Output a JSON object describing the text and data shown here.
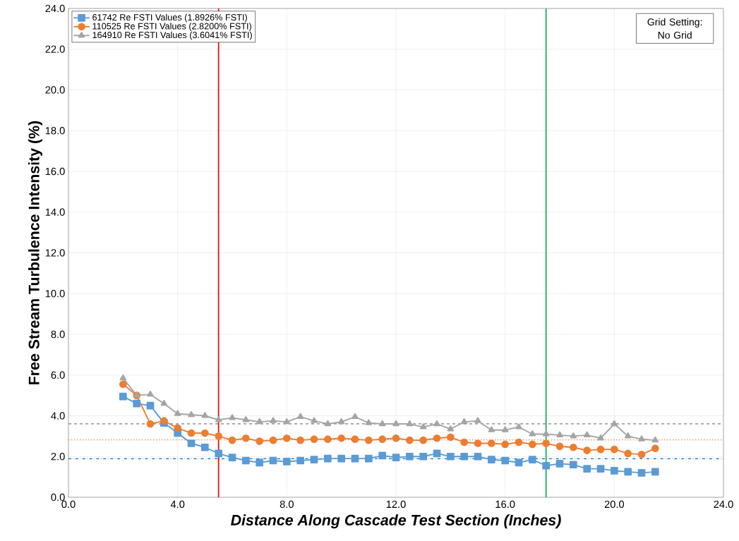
{
  "chart_data": {
    "type": "line",
    "xlabel": "Distance Along Cascade Test Section (Inches)",
    "ylabel": "Free Stream Turbulence Intensity (%)",
    "annotations": [
      "Grid Setting: No Grid"
    ],
    "x": [
      2,
      2.5,
      3,
      3.5,
      4,
      4.5,
      5,
      5.5,
      6,
      6.5,
      7,
      7.5,
      8,
      8.5,
      9,
      9.5,
      10,
      10.5,
      11,
      11.5,
      12,
      12.5,
      13,
      13.5,
      14,
      14.5,
      15,
      15.5,
      16,
      16.5,
      17,
      17.5,
      18,
      18.5,
      19,
      19.5,
      20,
      20.5,
      21,
      21.5
    ],
    "series": [
      {
        "name": "61742 Re FSTI Values (1.8926% FSTI)",
        "color": "#5b9bd5",
        "marker": "square",
        "values": [
          4.95,
          4.6,
          4.5,
          3.65,
          3.15,
          2.65,
          2.45,
          2.15,
          1.95,
          1.8,
          1.7,
          1.8,
          1.75,
          1.8,
          1.85,
          1.9,
          1.9,
          1.9,
          1.9,
          2.05,
          1.95,
          2.0,
          2.0,
          2.15,
          2.0,
          2.0,
          2.0,
          1.85,
          1.8,
          1.7,
          1.85,
          1.55,
          1.65,
          1.6,
          1.4,
          1.4,
          1.3,
          1.25,
          1.2,
          1.25
        ]
      },
      {
        "name": "110525 Re FSTI Values (2.8200% FSTI)",
        "color": "#ed7d31",
        "marker": "circle",
        "values": [
          5.55,
          5.0,
          3.6,
          3.75,
          3.4,
          3.15,
          3.15,
          3.0,
          2.8,
          2.9,
          2.75,
          2.8,
          2.9,
          2.8,
          2.85,
          2.85,
          2.9,
          2.85,
          2.8,
          2.85,
          2.9,
          2.8,
          2.8,
          2.9,
          2.95,
          2.7,
          2.65,
          2.65,
          2.6,
          2.7,
          2.6,
          2.65,
          2.5,
          2.45,
          2.3,
          2.35,
          2.35,
          2.15,
          2.1,
          2.4
        ]
      },
      {
        "name": "164910 Re FSTI Values (3.6041% FSTI)",
        "color": "#a5a5a5",
        "marker": "triangle",
        "values": [
          5.85,
          5.0,
          5.05,
          4.6,
          4.1,
          4.05,
          4.0,
          3.8,
          3.9,
          3.8,
          3.7,
          3.75,
          3.7,
          3.95,
          3.75,
          3.6,
          3.7,
          3.95,
          3.65,
          3.6,
          3.6,
          3.6,
          3.45,
          3.6,
          3.35,
          3.7,
          3.75,
          3.3,
          3.3,
          3.45,
          3.1,
          3.1,
          3.05,
          3.0,
          3.05,
          2.9,
          3.6,
          3.0,
          2.85,
          2.8
        ]
      }
    ],
    "ref_lines": [
      {
        "axis": "y",
        "value": 1.8926,
        "color": "#0070c0",
        "line_style": "dashdot"
      },
      {
        "axis": "y",
        "value": 2.82,
        "color": "#ed7d31",
        "line_style": "dotted"
      },
      {
        "axis": "y",
        "value": 3.6041,
        "color": "#7f7f7f",
        "line_style": "dashed"
      },
      {
        "axis": "x",
        "value": 5.5,
        "color": "#ff0000",
        "line_style": "solid"
      },
      {
        "axis": "x",
        "value": 17.5,
        "color": "#00b050",
        "line_style": "solid"
      }
    ],
    "xlim": [
      0,
      24
    ],
    "xticks": [
      {
        "value": 0,
        "label": "0.0"
      },
      {
        "value": 4,
        "label": "4.0"
      },
      {
        "value": 8,
        "label": "8.0"
      },
      {
        "value": 12,
        "label": "12.0"
      },
      {
        "value": 16,
        "label": "16.0"
      },
      {
        "value": 20,
        "label": "20.0"
      },
      {
        "value": 24,
        "label": "24.0"
      }
    ],
    "ylim": [
      0,
      24
    ],
    "yticks": [
      {
        "value": 0,
        "label": "0.0"
      },
      {
        "value": 2,
        "label": "2.0"
      },
      {
        "value": 4,
        "label": "4.0"
      },
      {
        "value": 6,
        "label": "6.0"
      },
      {
        "value": 8,
        "label": "8.0"
      },
      {
        "value": 10,
        "label": "10.0"
      },
      {
        "value": 12,
        "label": "12.0"
      },
      {
        "value": 14,
        "label": "14.0"
      },
      {
        "value": 16,
        "label": "16.0"
      },
      {
        "value": 18,
        "label": "18.0"
      },
      {
        "value": 20,
        "label": "20.0"
      },
      {
        "value": 22,
        "label": "22.0"
      },
      {
        "value": 24,
        "label": "24.0"
      }
    ],
    "grid": true,
    "legend": "top left"
  }
}
